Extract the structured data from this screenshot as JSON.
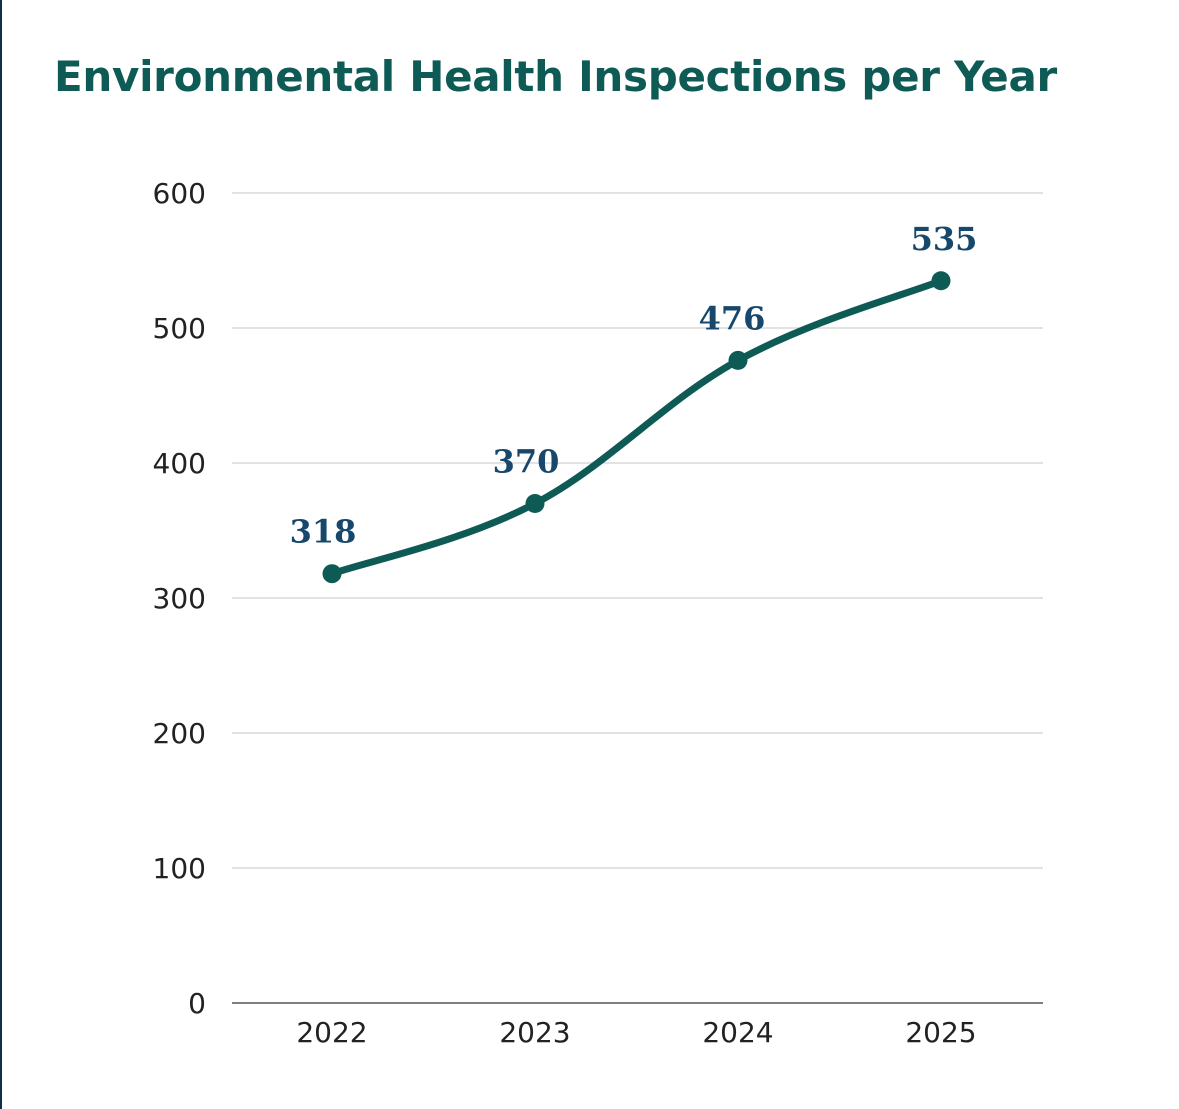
{
  "chart_data": {
    "type": "line",
    "title": "Environmental Health Inspections per Year",
    "xlabel": "",
    "ylabel": "",
    "categories": [
      "2022",
      "2023",
      "2024",
      "2025"
    ],
    "series": [
      {
        "values": [
          318,
          370,
          476,
          535
        ],
        "data_labels": [
          "318",
          "370",
          "476",
          "535"
        ]
      }
    ],
    "ylim": [
      0,
      600
    ],
    "yticks": [
      0,
      100,
      200,
      300,
      400,
      500,
      600
    ],
    "ytick_labels": [
      "0",
      "100",
      "200",
      "300",
      "400",
      "500",
      "600"
    ],
    "grid": true,
    "legend": "none",
    "colors": {
      "line": "#0e5a55",
      "title": "#0e5a55",
      "data_label": "#17486b",
      "grid": "#d0d0d0",
      "axis": "#555555"
    }
  }
}
